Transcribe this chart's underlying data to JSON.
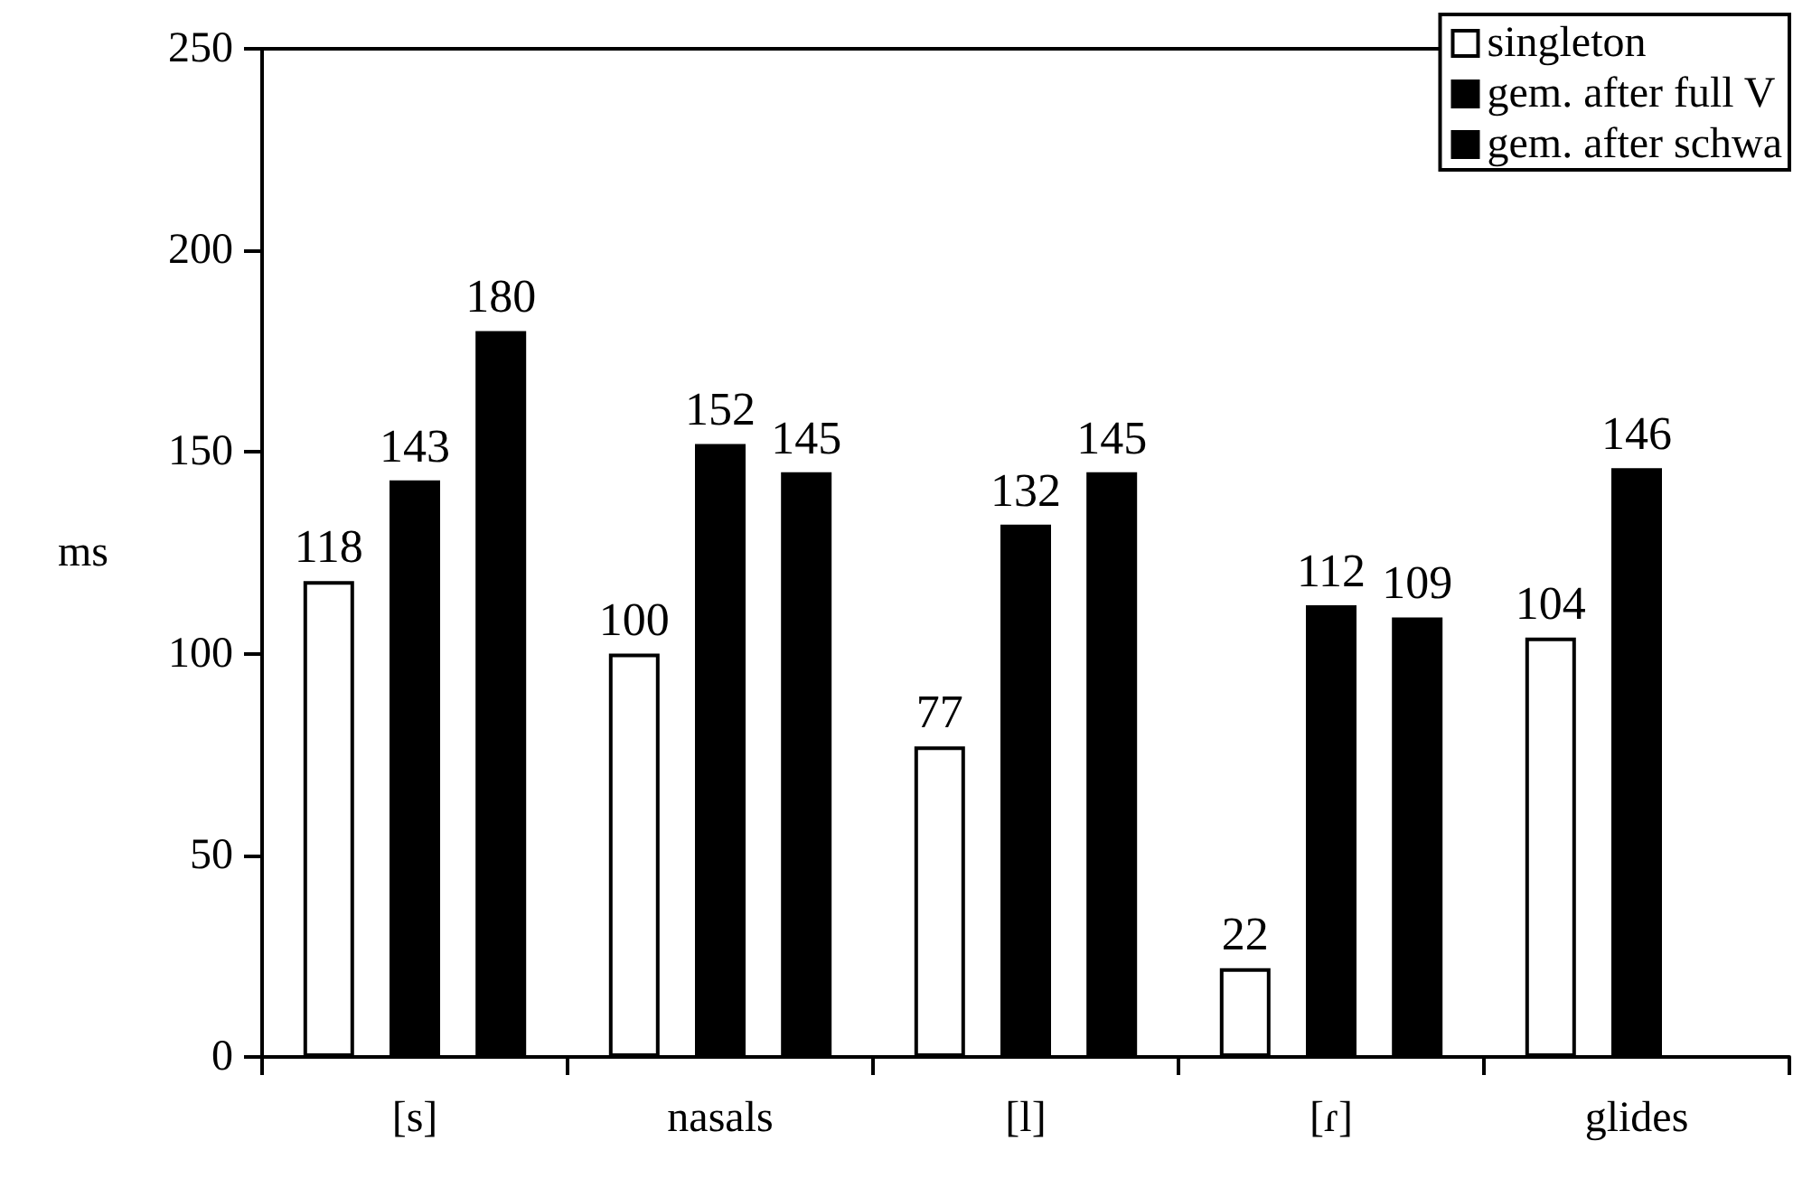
{
  "chart_data": {
    "type": "bar",
    "ylabel": "ms",
    "categories": [
      "[s]",
      "nasals",
      "[l]",
      "[ɾ]",
      "glides"
    ],
    "series": [
      {
        "name": "singleton",
        "color": "#ffffff",
        "values": [
          118,
          100,
          77,
          22,
          104
        ]
      },
      {
        "name": "gem. after full V",
        "color": "#000000",
        "values": [
          143,
          152,
          132,
          112,
          146
        ]
      },
      {
        "name": "gem. after schwa",
        "color": "#000000",
        "values": [
          180,
          145,
          145,
          109,
          null
        ]
      }
    ],
    "ylim": [
      0,
      250
    ],
    "yticks": [
      0,
      50,
      100,
      150,
      200,
      250
    ],
    "grid": false,
    "legend": "top right",
    "data_labels": true
  }
}
